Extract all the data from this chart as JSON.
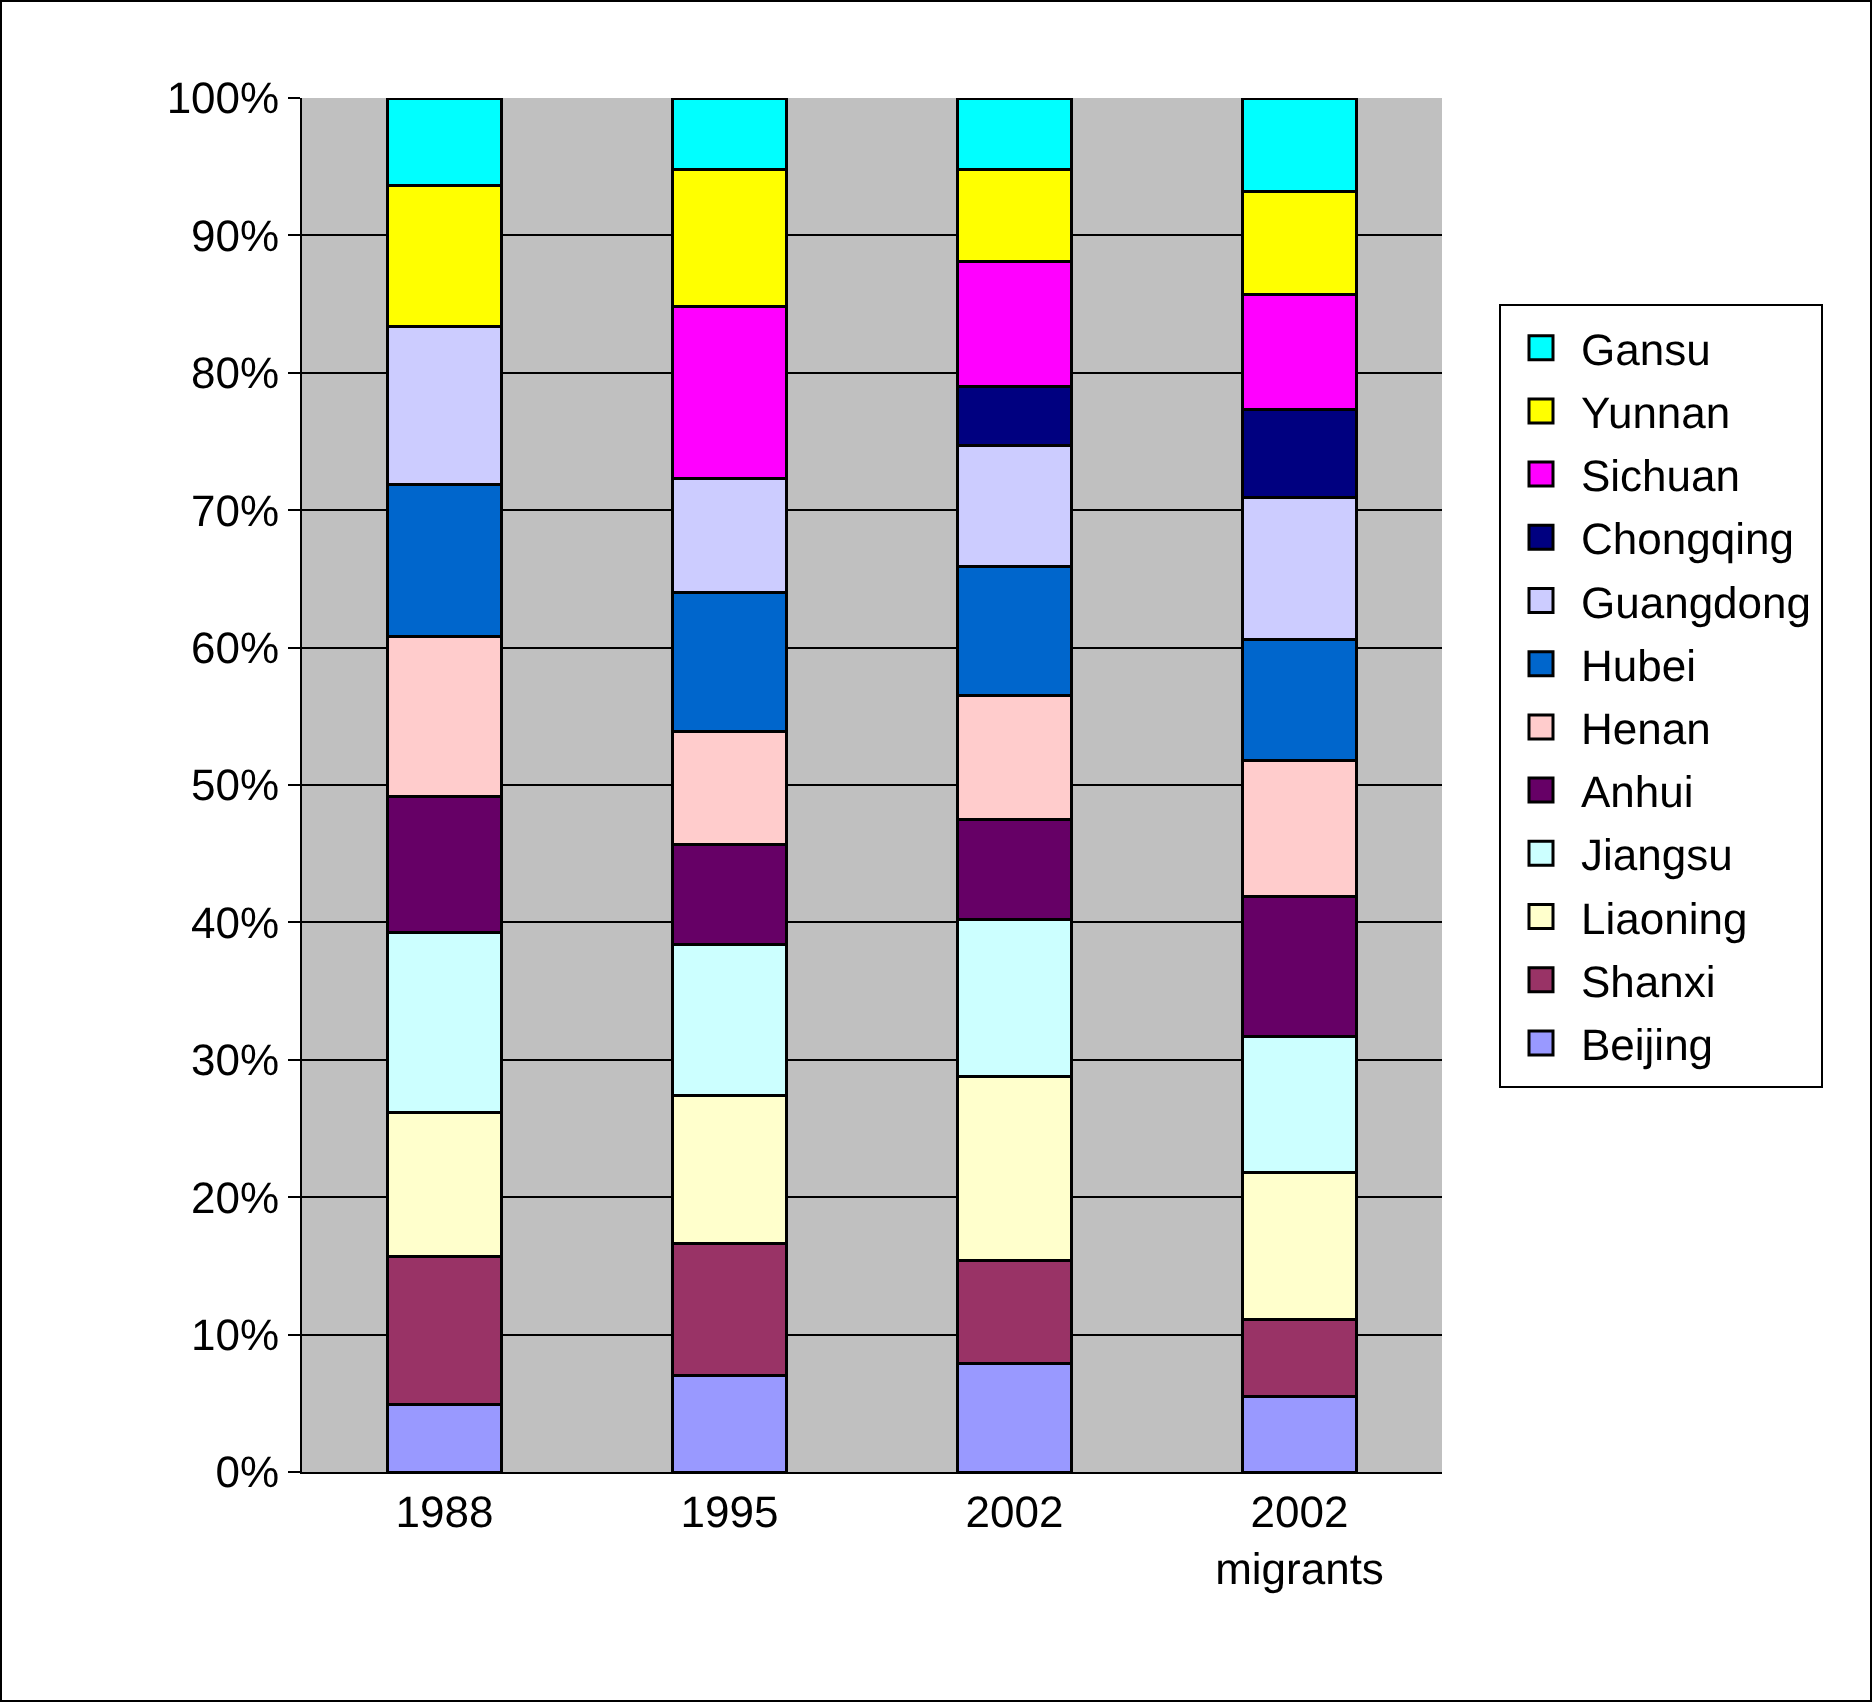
{
  "chart_data": {
    "type": "bar",
    "stacked": true,
    "categories": [
      "1988",
      "1995",
      "2002",
      "2002 migrants"
    ],
    "series": [
      {
        "name": "Beijing",
        "color": "#9999ff",
        "values": [
          4.9,
          7.0,
          7.9,
          5.5
        ]
      },
      {
        "name": "Shanxi",
        "color": "#993366",
        "values": [
          10.8,
          9.6,
          7.5,
          5.6
        ]
      },
      {
        "name": "Liaoning",
        "color": "#ffffcc",
        "values": [
          10.5,
          10.8,
          13.4,
          10.7
        ]
      },
      {
        "name": "Jiangsu",
        "color": "#ccffff",
        "values": [
          13.1,
          11.0,
          11.4,
          9.9
        ]
      },
      {
        "name": "Anhui",
        "color": "#660066",
        "values": [
          9.9,
          7.3,
          7.3,
          10.2
        ]
      },
      {
        "name": "Henan",
        "color": "#ffcccc",
        "values": [
          11.6,
          8.2,
          9.0,
          9.9
        ]
      },
      {
        "name": "Hubei",
        "color": "#0066cc",
        "values": [
          11.1,
          10.1,
          9.4,
          8.8
        ]
      },
      {
        "name": "Guangdong",
        "color": "#ccccff",
        "values": [
          11.5,
          8.3,
          8.8,
          10.3
        ]
      },
      {
        "name": "Chongqing",
        "color": "#000080",
        "values": [
          null,
          null,
          4.3,
          6.4
        ]
      },
      {
        "name": "Sichuan",
        "color": "#ff00ff",
        "values": [
          null,
          12.5,
          9.1,
          8.4
        ]
      },
      {
        "name": "Yunnan",
        "color": "#ffff00",
        "values": [
          10.2,
          10.0,
          6.7,
          7.5
        ]
      },
      {
        "name": "Gansu",
        "color": "#00ffff",
        "values": [
          6.4,
          5.2,
          5.2,
          6.8
        ]
      }
    ],
    "ylim": [
      0,
      100
    ],
    "yticks": [
      {
        "value": 0,
        "label": "0%"
      },
      {
        "value": 10,
        "label": "10%"
      },
      {
        "value": 20,
        "label": "20%"
      },
      {
        "value": 30,
        "label": "30%"
      },
      {
        "value": 40,
        "label": "40%"
      },
      {
        "value": 50,
        "label": "50%"
      },
      {
        "value": 60,
        "label": "60%"
      },
      {
        "value": 70,
        "label": "70%"
      },
      {
        "value": 80,
        "label": "80%"
      },
      {
        "value": 90,
        "label": "90%"
      },
      {
        "value": 100,
        "label": "100%"
      }
    ],
    "grid": "y",
    "legend": "right"
  }
}
